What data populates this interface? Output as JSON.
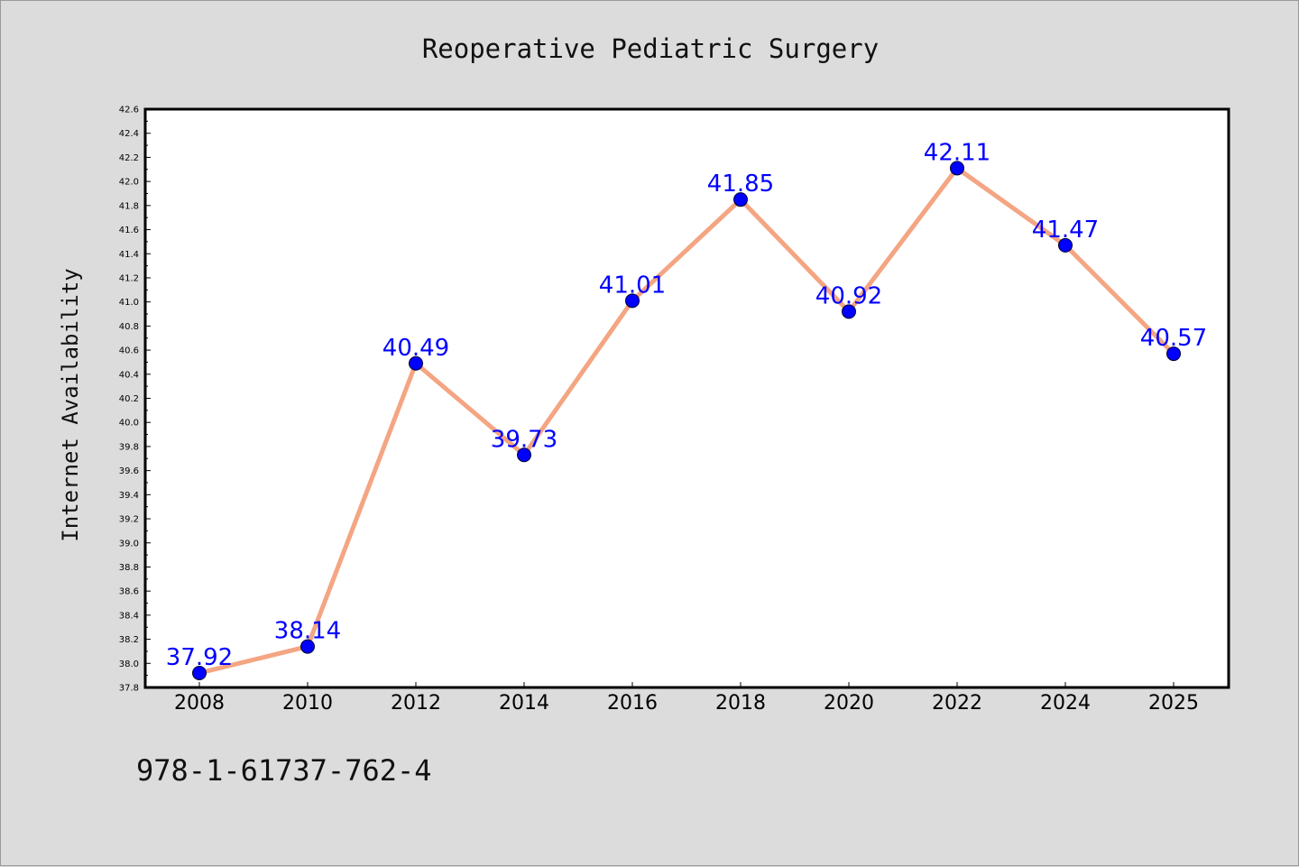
{
  "chart_data": {
    "type": "line",
    "title": "Reoperative Pediatric Surgery",
    "xlabel": "",
    "ylabel": "Internet Availability",
    "categories": [
      "2008",
      "2010",
      "2012",
      "2014",
      "2016",
      "2018",
      "2020",
      "2022",
      "2024",
      "2025"
    ],
    "series": [
      {
        "values": [
          37.92,
          38.14,
          40.49,
          39.73,
          41.01,
          41.85,
          40.92,
          42.11,
          41.47,
          40.57
        ],
        "labels": [
          "37.92",
          "38.14",
          "40.49",
          "39.73",
          "41.01",
          "41.85",
          "40.92",
          "42.11",
          "41.47",
          "40.57"
        ],
        "line_color": "#f4a582",
        "marker_color": "#0000ff"
      }
    ],
    "ylim": [
      37.8,
      42.6
    ],
    "yticks": [
      "37.8",
      "38.0",
      "38.2",
      "38.4",
      "38.6",
      "38.8",
      "39.0",
      "39.2",
      "39.4",
      "39.6",
      "39.8",
      "40.0",
      "40.2",
      "40.4",
      "40.6",
      "40.8",
      "41.0",
      "41.2",
      "41.4",
      "41.6",
      "41.8",
      "42.0",
      "42.2",
      "42.4",
      "42.6"
    ],
    "grid": false,
    "legend": "none"
  },
  "footer": {
    "isbn": "978-1-61737-762-4"
  },
  "colors": {
    "background": "#dcdcdc",
    "plot_background": "#ffffff",
    "axis": "#000000"
  }
}
